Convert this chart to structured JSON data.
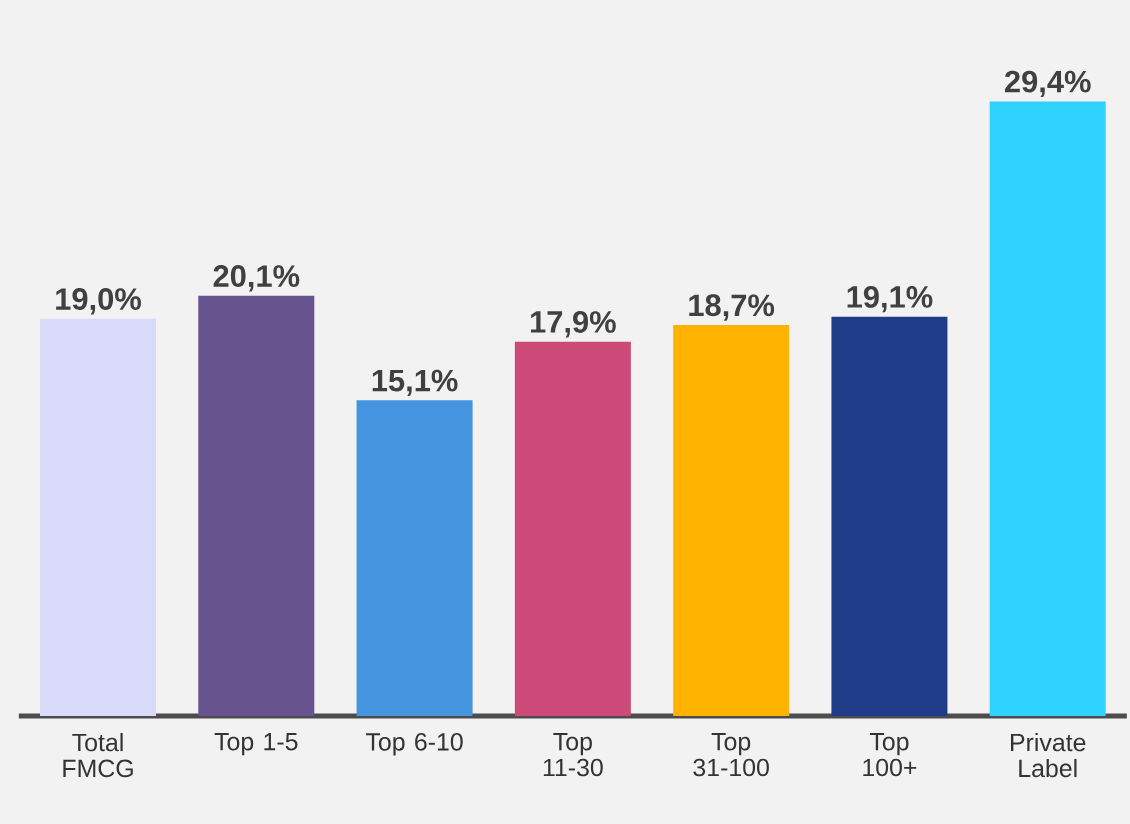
{
  "chart_data": {
    "type": "bar",
    "categories": [
      "Total FMCG",
      "Top 1-5",
      "Top 6-10",
      "Top 11-30",
      "Top 31-100",
      "Top 100+",
      "Private Label"
    ],
    "values": [
      19.0,
      20.1,
      15.1,
      17.9,
      18.7,
      19.1,
      29.4
    ],
    "colors": [
      "#d9d9f9",
      "#67548f",
      "#4594e0",
      "#cc4a78",
      "#ffb300",
      "#1f3c88",
      "#2ed1ff"
    ],
    "value_labels": [
      "19,0%",
      "20,1%",
      "15,1%",
      "17,9%",
      "18,7%",
      "19,1%",
      "29,4%"
    ]
  }
}
